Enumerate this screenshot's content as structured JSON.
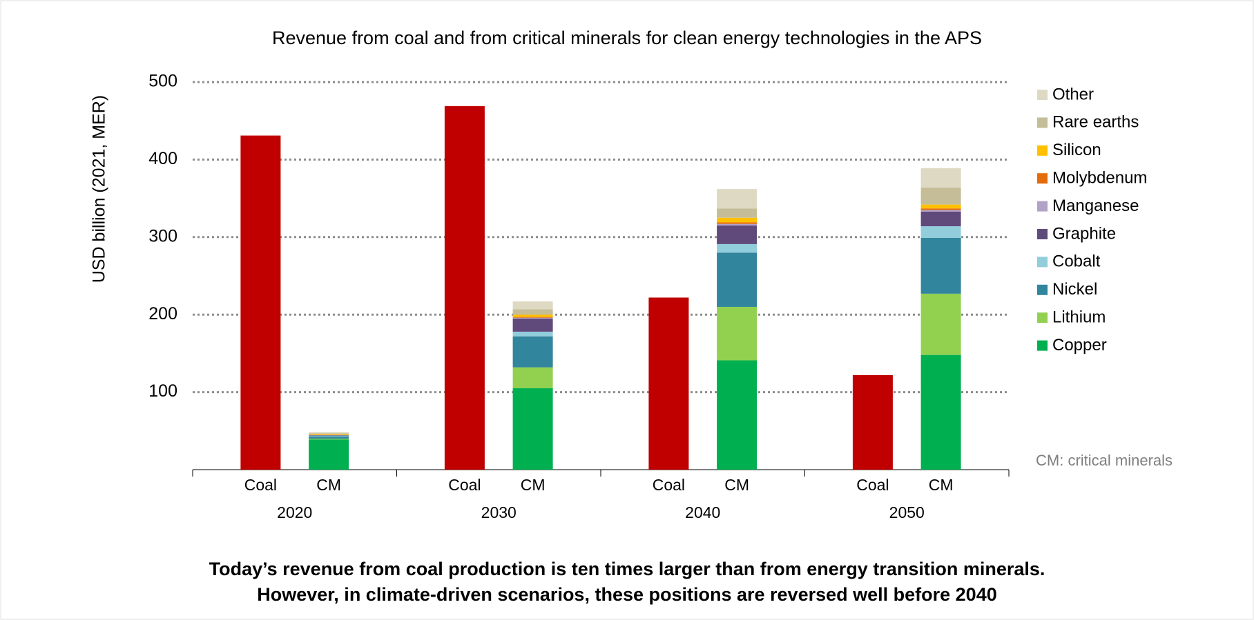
{
  "chart_data": {
    "type": "bar",
    "stacked": true,
    "title": "Revenue from coal and from critical minerals for clean energy technologies in the APS",
    "y_label": "USD billion  (2021, MER)",
    "categories": [
      "2020",
      "2030",
      "2040",
      "2050"
    ],
    "sub_labels": [
      "Coal",
      "CM"
    ],
    "coal": {
      "color": "#c00000",
      "values": [
        431,
        469,
        222,
        122
      ]
    },
    "series": [
      {
        "name": "Copper",
        "color": "#00b050",
        "values": [
          39,
          105,
          141,
          148
        ]
      },
      {
        "name": "Lithium",
        "color": "#92d050",
        "values": [
          1,
          27,
          69,
          79
        ]
      },
      {
        "name": "Nickel",
        "color": "#31859c",
        "values": [
          3,
          40,
          70,
          72
        ]
      },
      {
        "name": "Cobalt",
        "color": "#92cddc",
        "values": [
          1,
          6,
          11,
          15
        ]
      },
      {
        "name": "Graphite",
        "color": "#604a7b",
        "values": [
          0.5,
          17,
          24,
          19
        ]
      },
      {
        "name": "Manganese",
        "color": "#b3a2c7",
        "values": [
          0.2,
          1,
          2,
          2
        ]
      },
      {
        "name": "Molybdenum",
        "color": "#e46c0a",
        "values": [
          0.3,
          1,
          2,
          2
        ]
      },
      {
        "name": "Silicon",
        "color": "#ffc000",
        "values": [
          1,
          3,
          6,
          5
        ]
      },
      {
        "name": "Rare earths",
        "color": "#c4bd97",
        "values": [
          1,
          7,
          12,
          22
        ]
      },
      {
        "name": "Other",
        "color": "#ddd9c3",
        "values": [
          1.5,
          10,
          25,
          25
        ]
      }
    ],
    "ylim": [
      0,
      500
    ],
    "yticks": [
      100,
      200,
      300,
      400,
      500
    ],
    "grid": true,
    "legend": "right",
    "note": "CM: critical minerals",
    "footer": [
      "Today’s revenue from coal production is ten times larger than from energy transition minerals.",
      "However, in climate-driven scenarios, these positions are reversed well before 2040"
    ]
  }
}
